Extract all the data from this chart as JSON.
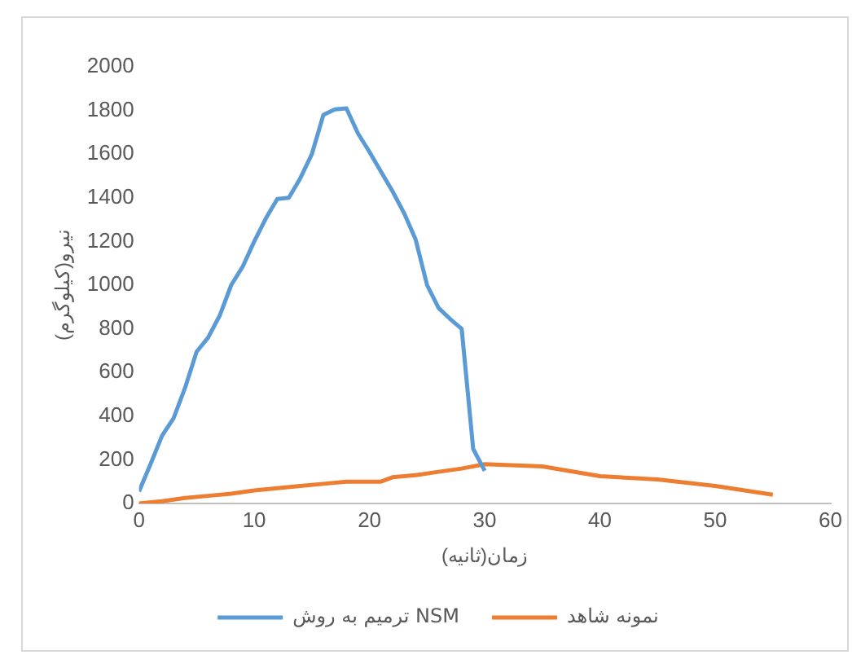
{
  "chart_data": {
    "type": "line",
    "xlabel": "زمان(ثانیه)",
    "ylabel": "نیرو(کیلوگرم)",
    "series": [
      {
        "name": "ترمیم به روش NSM",
        "color": "#5b9bd5",
        "x": [
          0,
          1,
          2,
          3,
          4,
          5,
          6,
          7,
          8,
          9,
          10,
          11,
          12,
          13,
          14,
          15,
          16,
          17,
          18,
          19,
          20,
          21,
          22,
          23,
          24,
          25,
          26,
          27,
          28,
          29,
          30
        ],
        "values": [
          55,
          180,
          310,
          390,
          530,
          695,
          760,
          860,
          1000,
          1085,
          1200,
          1305,
          1395,
          1400,
          1490,
          1600,
          1780,
          1805,
          1810,
          1695,
          1610,
          1520,
          1430,
          1330,
          1210,
          1000,
          895,
          845,
          800,
          250,
          150
        ]
      },
      {
        "name": "نمونه شاهد",
        "color": "#ed7d31",
        "x": [
          0,
          2,
          4,
          6,
          8,
          10,
          12,
          14,
          16,
          18,
          20,
          21,
          22,
          24,
          26,
          28,
          30,
          35,
          40,
          45,
          50,
          55
        ],
        "values": [
          0,
          10,
          25,
          35,
          45,
          60,
          70,
          80,
          90,
          100,
          100,
          100,
          120,
          130,
          145,
          160,
          180,
          170,
          125,
          110,
          80,
          40
        ]
      }
    ],
    "xlim": [
      0,
      60
    ],
    "xticks": [
      0,
      10,
      20,
      30,
      40,
      50,
      60
    ],
    "ylim": [
      0,
      2000
    ],
    "yticks": [
      0,
      200,
      400,
      600,
      800,
      1000,
      1200,
      1400,
      1600,
      1800,
      2000
    ],
    "grid": false,
    "legend": "bottom",
    "marker": "none",
    "line_style": "solid"
  }
}
